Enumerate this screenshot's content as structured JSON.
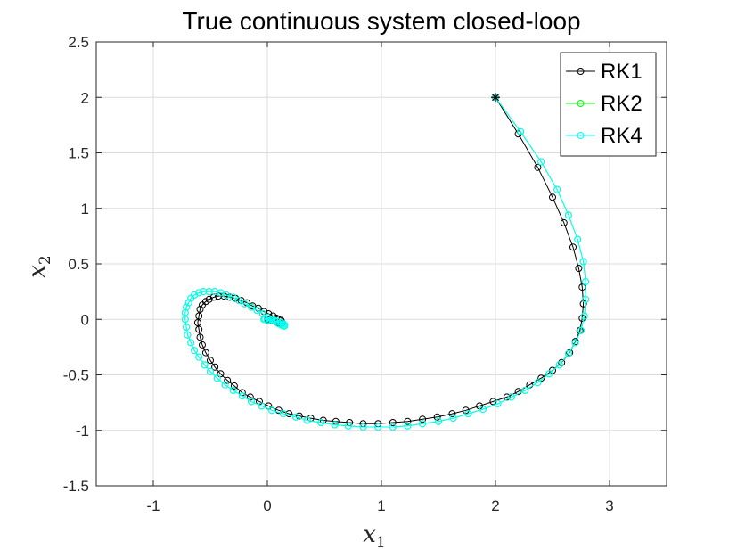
{
  "chart_data": {
    "type": "line",
    "title": "True continuous system closed-loop",
    "xlabel": "x",
    "xlabel_sub": "1",
    "ylabel": "x",
    "ylabel_sub": "2",
    "xlim": [
      -1.5,
      3.5
    ],
    "ylim": [
      -1.5,
      2.5
    ],
    "xticks": [
      -1,
      0,
      1,
      2,
      3
    ],
    "yticks": [
      -1.5,
      -1,
      -0.5,
      0,
      0.5,
      1,
      1.5,
      2,
      2.5
    ],
    "grid": true,
    "legend_position": "top-right",
    "start_point": [
      2,
      2
    ],
    "series": [
      {
        "name": "RK1",
        "color": "#000000",
        "marker": "circle",
        "x": [
          2.0,
          2.2,
          2.37,
          2.5,
          2.6,
          2.68,
          2.73,
          2.76,
          2.77,
          2.76,
          2.74,
          2.7,
          2.65,
          2.58,
          2.5,
          2.4,
          2.3,
          2.2,
          2.1,
          1.98,
          1.86,
          1.74,
          1.62,
          1.49,
          1.36,
          1.23,
          1.1,
          0.97,
          0.84,
          0.72,
          0.6,
          0.49,
          0.38,
          0.28,
          0.19,
          0.1,
          0.01,
          -0.07,
          -0.15,
          -0.22,
          -0.29,
          -0.35,
          -0.41,
          -0.46,
          -0.5,
          -0.54,
          -0.57,
          -0.59,
          -0.6,
          -0.61,
          -0.6,
          -0.59,
          -0.57,
          -0.54,
          -0.51,
          -0.47,
          -0.43,
          -0.38,
          -0.33,
          -0.28,
          -0.23,
          -0.18,
          -0.13,
          -0.08,
          -0.03,
          0.01,
          0.05,
          0.08,
          0.1,
          0.12,
          0.13,
          0.12,
          0.11,
          0.09,
          0.07,
          0.04,
          0.01,
          0.0
        ],
        "y": [
          2.0,
          1.67,
          1.37,
          1.1,
          0.87,
          0.65,
          0.46,
          0.29,
          0.14,
          0.01,
          -0.1,
          -0.2,
          -0.3,
          -0.39,
          -0.46,
          -0.53,
          -0.59,
          -0.65,
          -0.7,
          -0.74,
          -0.78,
          -0.82,
          -0.85,
          -0.88,
          -0.9,
          -0.92,
          -0.93,
          -0.94,
          -0.94,
          -0.93,
          -0.92,
          -0.91,
          -0.89,
          -0.87,
          -0.85,
          -0.82,
          -0.78,
          -0.74,
          -0.7,
          -0.66,
          -0.6,
          -0.55,
          -0.49,
          -0.43,
          -0.37,
          -0.3,
          -0.23,
          -0.16,
          -0.09,
          -0.03,
          0.03,
          0.09,
          0.13,
          0.16,
          0.18,
          0.2,
          0.21,
          0.21,
          0.2,
          0.19,
          0.17,
          0.15,
          0.12,
          0.1,
          0.07,
          0.05,
          0.03,
          0.01,
          0.0,
          -0.01,
          -0.03,
          -0.04,
          -0.04,
          -0.03,
          -0.02,
          -0.01,
          0.0,
          0.0
        ]
      },
      {
        "name": "RK2",
        "color": "#00ff00",
        "marker": "circle",
        "x": [
          2.0,
          2.22,
          2.4,
          2.54,
          2.64,
          2.72,
          2.77,
          2.79,
          2.79,
          2.78,
          2.75,
          2.7,
          2.64,
          2.56,
          2.47,
          2.37,
          2.26,
          2.14,
          2.02,
          1.89,
          1.76,
          1.63,
          1.5,
          1.36,
          1.23,
          1.1,
          0.97,
          0.84,
          0.71,
          0.59,
          0.47,
          0.35,
          0.25,
          0.14,
          0.04,
          -0.05,
          -0.14,
          -0.22,
          -0.3,
          -0.37,
          -0.44,
          -0.5,
          -0.55,
          -0.6,
          -0.64,
          -0.67,
          -0.7,
          -0.71,
          -0.72,
          -0.72,
          -0.71,
          -0.69,
          -0.67,
          -0.64,
          -0.6,
          -0.56,
          -0.51,
          -0.46,
          -0.41,
          -0.36,
          -0.3,
          -0.25,
          -0.2,
          -0.14,
          -0.09,
          -0.04,
          0.0,
          0.04,
          0.07,
          0.1,
          0.12,
          0.14,
          0.15,
          0.15,
          0.14,
          0.12,
          0.09,
          0.06,
          0.03,
          0.0,
          -0.02,
          -0.03
        ],
        "y": [
          2.0,
          1.69,
          1.42,
          1.17,
          0.94,
          0.72,
          0.52,
          0.34,
          0.18,
          0.03,
          -0.1,
          -0.21,
          -0.31,
          -0.41,
          -0.49,
          -0.57,
          -0.64,
          -0.7,
          -0.76,
          -0.81,
          -0.85,
          -0.89,
          -0.92,
          -0.94,
          -0.96,
          -0.97,
          -0.97,
          -0.97,
          -0.96,
          -0.95,
          -0.93,
          -0.91,
          -0.88,
          -0.85,
          -0.82,
          -0.78,
          -0.74,
          -0.69,
          -0.64,
          -0.59,
          -0.53,
          -0.47,
          -0.41,
          -0.34,
          -0.28,
          -0.21,
          -0.14,
          -0.07,
          0.0,
          0.06,
          0.11,
          0.15,
          0.19,
          0.22,
          0.24,
          0.25,
          0.25,
          0.25,
          0.24,
          0.22,
          0.2,
          0.17,
          0.14,
          0.11,
          0.08,
          0.05,
          0.02,
          0.0,
          -0.02,
          -0.04,
          -0.05,
          -0.06,
          -0.06,
          -0.05,
          -0.04,
          -0.03,
          -0.02,
          -0.01,
          -0.01,
          -0.01,
          0.0,
          0.0
        ]
      },
      {
        "name": "RK4",
        "color": "#00ffff",
        "marker": "circle",
        "x": [
          2.0,
          2.22,
          2.4,
          2.54,
          2.64,
          2.72,
          2.77,
          2.79,
          2.79,
          2.78,
          2.75,
          2.7,
          2.64,
          2.56,
          2.47,
          2.37,
          2.26,
          2.14,
          2.02,
          1.89,
          1.76,
          1.63,
          1.5,
          1.36,
          1.23,
          1.1,
          0.97,
          0.84,
          0.71,
          0.59,
          0.47,
          0.35,
          0.25,
          0.14,
          0.04,
          -0.05,
          -0.14,
          -0.22,
          -0.3,
          -0.37,
          -0.44,
          -0.5,
          -0.55,
          -0.6,
          -0.64,
          -0.67,
          -0.7,
          -0.71,
          -0.72,
          -0.72,
          -0.71,
          -0.69,
          -0.67,
          -0.64,
          -0.6,
          -0.56,
          -0.51,
          -0.46,
          -0.41,
          -0.36,
          -0.3,
          -0.25,
          -0.2,
          -0.14,
          -0.09,
          -0.04,
          0.0,
          0.04,
          0.07,
          0.1,
          0.12,
          0.14,
          0.15,
          0.15,
          0.14,
          0.12,
          0.09,
          0.06,
          0.03,
          0.0,
          -0.02,
          -0.03
        ],
        "y": [
          2.0,
          1.69,
          1.42,
          1.17,
          0.94,
          0.72,
          0.52,
          0.34,
          0.18,
          0.03,
          -0.1,
          -0.21,
          -0.31,
          -0.41,
          -0.49,
          -0.57,
          -0.64,
          -0.7,
          -0.76,
          -0.81,
          -0.85,
          -0.89,
          -0.92,
          -0.94,
          -0.96,
          -0.97,
          -0.97,
          -0.97,
          -0.96,
          -0.95,
          -0.93,
          -0.91,
          -0.88,
          -0.85,
          -0.82,
          -0.78,
          -0.74,
          -0.69,
          -0.64,
          -0.59,
          -0.53,
          -0.47,
          -0.41,
          -0.34,
          -0.28,
          -0.21,
          -0.14,
          -0.07,
          0.0,
          0.06,
          0.11,
          0.15,
          0.19,
          0.22,
          0.24,
          0.25,
          0.25,
          0.25,
          0.24,
          0.22,
          0.2,
          0.17,
          0.14,
          0.11,
          0.08,
          0.05,
          0.02,
          0.0,
          -0.02,
          -0.04,
          -0.05,
          -0.06,
          -0.06,
          -0.05,
          -0.04,
          -0.03,
          -0.02,
          -0.01,
          -0.01,
          -0.01,
          0.0,
          0.0
        ]
      }
    ]
  }
}
